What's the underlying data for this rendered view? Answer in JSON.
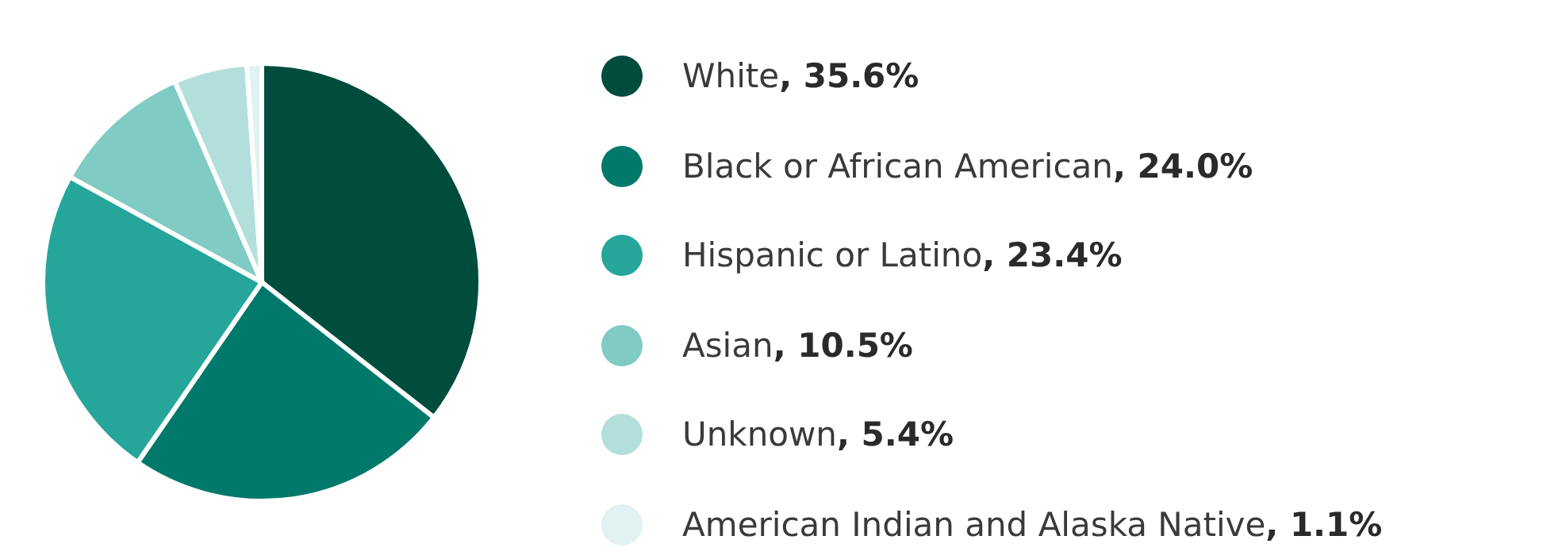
{
  "chart_data": {
    "type": "pie",
    "categories": [
      "White",
      "Black or African American",
      "Hispanic or Latino",
      "Asian",
      "Unknown",
      "American Indian and Alaska Native"
    ],
    "values": [
      35.6,
      24.0,
      23.4,
      10.5,
      5.4,
      1.1
    ],
    "value_labels": [
      ", 35.6%",
      ", 24.0%",
      ", 23.4%",
      ", 10.5%",
      ", 5.4%",
      ", 1.1%"
    ],
    "colors": [
      "#004d3d",
      "#00796b",
      "#26a69a",
      "#80cbc4",
      "#b2dfdb",
      "#e0f2f1"
    ],
    "legend": "right"
  }
}
